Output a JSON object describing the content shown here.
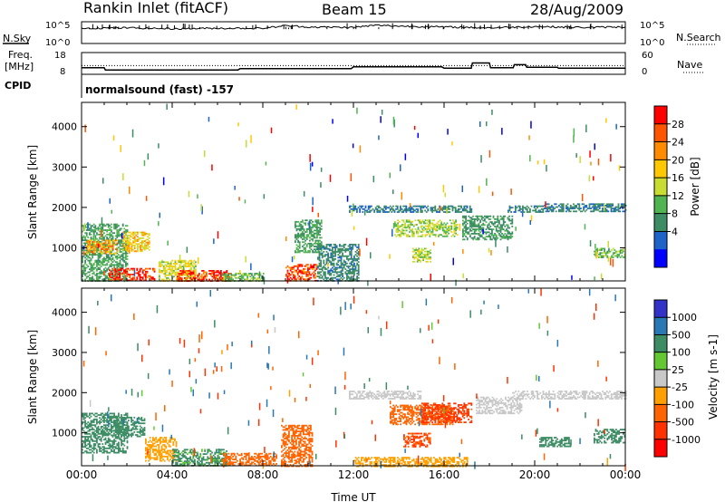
{
  "header": {
    "station": "Rankin Inlet (fitACF)",
    "beam": "Beam 15",
    "date": "28/Aug/2009"
  },
  "nsky_panel": {
    "label": "N.Sky",
    "left_ticks": [
      "10^5",
      "10^0"
    ],
    "right_ticks": [
      "10^5",
      "10^0"
    ],
    "right_label": "N.Search"
  },
  "freq_panel": {
    "label_line1": "Freq.",
    "label_line2": "[MHz]",
    "left_ticks": [
      "18",
      "8"
    ],
    "right_ticks": [
      "60",
      "0"
    ],
    "right_label": "Nave"
  },
  "cpid": {
    "label": "CPID",
    "text": "normalsound (fast) -157"
  },
  "x_axis": {
    "title": "Time UT",
    "ticks": [
      "00:00",
      "04:00",
      "08:00",
      "12:00",
      "16:00",
      "20:00",
      "00:00"
    ]
  },
  "y_axis": {
    "title": "Slant Range [km]",
    "ticks": [
      "4000",
      "3000",
      "2000",
      "1000"
    ]
  },
  "power_colorbar": {
    "label": "Power [dB]",
    "ticks": [
      "28",
      "24",
      "20",
      "16",
      "12",
      "8",
      "4"
    ],
    "colors": [
      "#ff0000",
      "#ff5500",
      "#ff8c00",
      "#ffc800",
      "#c8dc32",
      "#50b450",
      "#3c8c64",
      "#1e64c8",
      "#0000ff"
    ]
  },
  "velocity_colorbar": {
    "label": "Velocity [m s-1]",
    "ticks": [
      "1000",
      "500",
      "100",
      "25",
      "-25",
      "-100",
      "-500",
      "-1000"
    ],
    "colors": [
      "#3232c8",
      "#2878b4",
      "#3c8c64",
      "#64c832",
      "#c8c8c8",
      "#ffa000",
      "#ff6400",
      "#ff3200",
      "#ff0000"
    ]
  },
  "chart_data": [
    {
      "type": "heatmap",
      "title": "Power [dB]",
      "xlabel": "Time UT",
      "ylabel": "Slant Range [km]",
      "xlim": [
        "00:00",
        "24:00"
      ],
      "ylim": [
        180,
        4600
      ],
      "colorbar_range": [
        0,
        30
      ],
      "patches": [
        {
          "t0": 0.0,
          "t1": 2.0,
          "r0": 180,
          "r1": 1600,
          "v": 10
        },
        {
          "t0": 0.2,
          "t1": 1.6,
          "r0": 850,
          "r1": 1200,
          "v": 20
        },
        {
          "t0": 1.2,
          "t1": 3.2,
          "r0": 180,
          "r1": 500,
          "v": 27
        },
        {
          "t0": 1.8,
          "t1": 3.0,
          "r0": 900,
          "r1": 1400,
          "v": 18
        },
        {
          "t0": 3.4,
          "t1": 5.0,
          "r0": 180,
          "r1": 700,
          "v": 16
        },
        {
          "t0": 4.2,
          "t1": 6.6,
          "r0": 180,
          "r1": 450,
          "v": 27
        },
        {
          "t0": 6.2,
          "t1": 8.0,
          "r0": 180,
          "r1": 380,
          "v": 12
        },
        {
          "t0": 9.0,
          "t1": 10.4,
          "r0": 180,
          "r1": 600,
          "v": 26
        },
        {
          "t0": 9.4,
          "t1": 10.6,
          "r0": 900,
          "r1": 1700,
          "v": 10
        },
        {
          "t0": 10.4,
          "t1": 12.2,
          "r0": 180,
          "r1": 1100,
          "v": 8
        },
        {
          "t0": 11.8,
          "t1": 15.0,
          "r0": 1900,
          "r1": 2050,
          "v": 7
        },
        {
          "t0": 13.8,
          "t1": 16.6,
          "r0": 1300,
          "r1": 1700,
          "v": 14
        },
        {
          "t0": 14.6,
          "t1": 15.4,
          "r0": 650,
          "r1": 1000,
          "v": 14
        },
        {
          "t0": 15.0,
          "t1": 17.2,
          "r0": 1900,
          "r1": 2050,
          "v": 8
        },
        {
          "t0": 16.8,
          "t1": 19.0,
          "r0": 1200,
          "r1": 1800,
          "v": 9
        },
        {
          "t0": 18.8,
          "t1": 20.4,
          "r0": 1900,
          "r1": 2050,
          "v": 8
        },
        {
          "t0": 20.4,
          "t1": 24.0,
          "r0": 1900,
          "r1": 2100,
          "v": 7
        },
        {
          "t0": 22.6,
          "t1": 24.0,
          "r0": 750,
          "r1": 1000,
          "v": 12
        }
      ]
    },
    {
      "type": "heatmap",
      "title": "Velocity [m s-1]",
      "xlabel": "Time UT",
      "ylabel": "Slant Range [km]",
      "xlim": [
        "00:00",
        "24:00"
      ],
      "ylim": [
        180,
        4600
      ],
      "colorbar_range": [
        -1000,
        1000
      ],
      "patches": [
        {
          "t0": 0.0,
          "t1": 2.0,
          "r0": 500,
          "r1": 1500,
          "v": 150
        },
        {
          "t0": 1.4,
          "t1": 2.8,
          "r0": 900,
          "r1": 1400,
          "v": 200
        },
        {
          "t0": 2.8,
          "t1": 4.2,
          "r0": 300,
          "r1": 900,
          "v": -80
        },
        {
          "t0": 4.0,
          "t1": 6.4,
          "r0": 180,
          "r1": 600,
          "v": 120
        },
        {
          "t0": 6.2,
          "t1": 8.6,
          "r0": 180,
          "r1": 500,
          "v": -150
        },
        {
          "t0": 8.8,
          "t1": 10.2,
          "r0": 180,
          "r1": 1200,
          "v": -200
        },
        {
          "t0": 11.8,
          "t1": 15.0,
          "r0": 1850,
          "r1": 2050,
          "v": 0
        },
        {
          "t0": 13.6,
          "t1": 16.4,
          "r0": 1200,
          "r1": 1700,
          "v": -150
        },
        {
          "t0": 15.0,
          "t1": 17.2,
          "r0": 1250,
          "r1": 1750,
          "v": -600
        },
        {
          "t0": 14.2,
          "t1": 15.4,
          "r0": 650,
          "r1": 1000,
          "v": -500
        },
        {
          "t0": 12.0,
          "t1": 17.0,
          "r0": 180,
          "r1": 400,
          "v": -60
        },
        {
          "t0": 17.4,
          "t1": 19.4,
          "r0": 1500,
          "r1": 1900,
          "v": 0
        },
        {
          "t0": 19.0,
          "t1": 24.0,
          "r0": 1850,
          "r1": 2050,
          "v": 0
        },
        {
          "t0": 20.2,
          "t1": 21.6,
          "r0": 650,
          "r1": 900,
          "v": 200
        },
        {
          "t0": 22.6,
          "t1": 24.0,
          "r0": 750,
          "r1": 1100,
          "v": 150
        }
      ]
    },
    {
      "type": "line",
      "title": "N.Sky",
      "series": [
        {
          "name": "N.Sky",
          "x_hours": [
            0,
            2,
            4,
            6,
            8,
            9,
            10,
            12,
            13,
            14,
            16,
            18,
            20,
            22,
            24
          ],
          "log10_values": [
            3.5,
            3.6,
            3.4,
            3.5,
            3.5,
            4.1,
            3.8,
            3.7,
            4.2,
            4.0,
            3.8,
            3.6,
            3.9,
            3.7,
            3.8
          ]
        }
      ]
    },
    {
      "type": "line",
      "title": "Freq.",
      "series": [
        {
          "name": "Freq. [MHz]",
          "x_hours": [
            0,
            1,
            1.05,
            6.9,
            7,
            11.9,
            12,
            15.9,
            16,
            17.2,
            17.25,
            18,
            18.05,
            19.05,
            19.1,
            19.6,
            19.65,
            21,
            21.05,
            24
          ],
          "values": [
            11,
            11,
            10,
            10,
            10.6,
            10.6,
            11.4,
            11.4,
            10.8,
            10.8,
            13.2,
            13.2,
            11,
            11,
            12.4,
            12.4,
            11.2,
            11.2,
            10.8,
            10.8
          ]
        },
        {
          "name": "Nave",
          "x_hours": [
            0,
            24
          ],
          "values": [
            24,
            24
          ]
        }
      ]
    }
  ]
}
